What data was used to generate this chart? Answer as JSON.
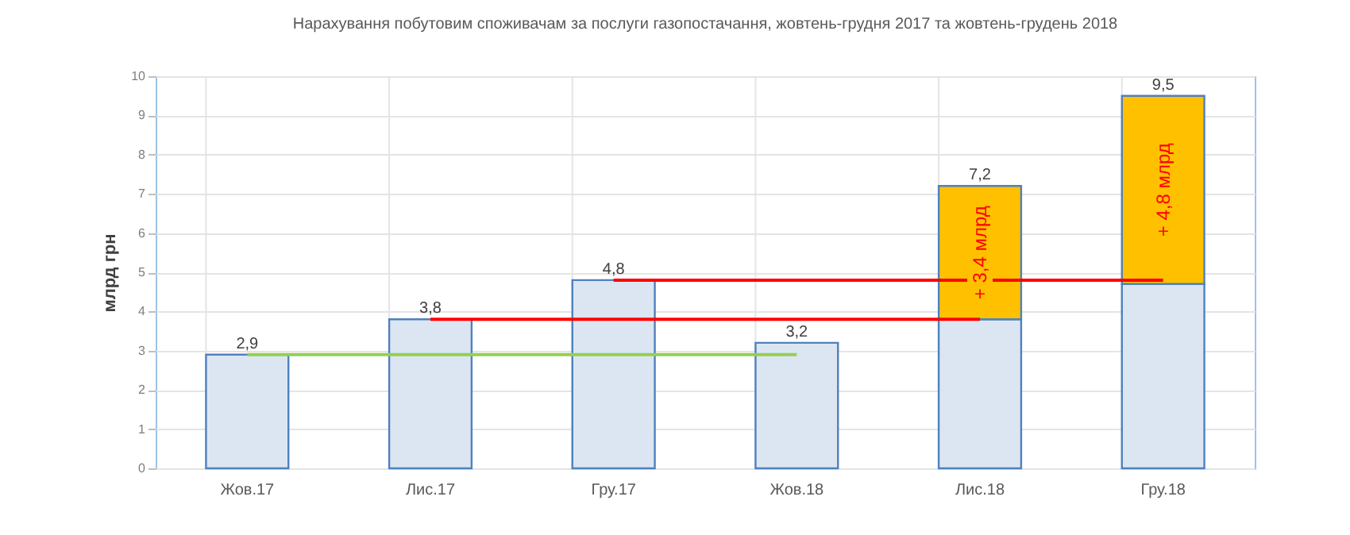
{
  "chart_data": {
    "type": "bar",
    "title": "Нарахування побутовим споживачам за послуги газопостачання, жовтень-грудня 2017 та жовтень-грудень 2018",
    "ylabel": "млрд грн",
    "categories": [
      "Жов.17",
      "Лис.17",
      "Гру.17",
      "Жов.18",
      "Лис.18",
      "Гру.18"
    ],
    "stacked": true,
    "series": [
      {
        "color": "#dce6f2",
        "values": [
          2.9,
          3.8,
          4.8,
          3.2,
          3.8,
          4.7
        ],
        "value_labels": [
          "2,9",
          "3,8",
          "4,8",
          "3,2",
          null,
          null
        ]
      },
      {
        "color": "#ffc000",
        "values": [
          null,
          null,
          null,
          null,
          3.4,
          4.8
        ],
        "value_labels": [
          null,
          null,
          null,
          null,
          "+ 3,4 млрд",
          "+ 4,8 млрд"
        ]
      },
      {
        "type": "line",
        "color": "#92d050",
        "x": [
          "Жов.17",
          "Жов.18"
        ],
        "values": [
          2.9,
          2.9
        ]
      },
      {
        "type": "line",
        "color": "#ff0000",
        "x": [
          "Лис.17",
          "Лис.18"
        ],
        "values": [
          3.8,
          3.8
        ]
      },
      {
        "type": "line",
        "color": "#ff0000",
        "x": [
          "Гру.17",
          "Гру.18"
        ],
        "values": [
          4.8,
          4.8
        ]
      }
    ],
    "totals": [
      null,
      null,
      null,
      null,
      "7,2",
      "9,5"
    ],
    "ylim": [
      0,
      10
    ],
    "yticks": [
      0,
      1,
      2,
      3,
      4,
      5,
      6,
      7,
      8,
      9,
      10
    ],
    "grid": true
  }
}
